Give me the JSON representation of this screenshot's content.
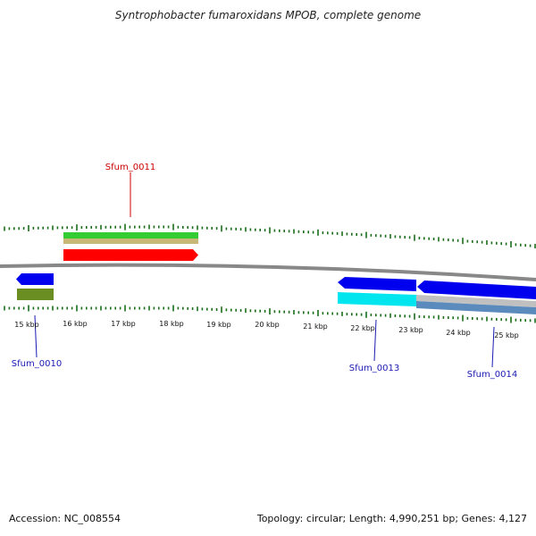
{
  "title": "Syntrophobacter fumaroxidans MPOB, complete genome",
  "footer": {
    "accession": "Accession: NC_008554",
    "summary": "Topology: circular; Length: 4,990,251 bp; Genes: 4,127"
  },
  "scale_labels": [
    "15 kbp",
    "16 kbp",
    "17 kbp",
    "18 kbp",
    "19 kbp",
    "20 kbp",
    "21 kbp",
    "22 kbp",
    "23 kbp",
    "24 kbp",
    "25 kbp"
  ],
  "genes": [
    {
      "name": "Sfum_0010",
      "color": "#1a1ab4",
      "strand": "-",
      "start_kbp": 14.67,
      "end_kbp": 15.23
    },
    {
      "name": "Sfum_0011",
      "color": "#cc0000",
      "strand": "+",
      "start_kbp": 15.75,
      "end_kbp": 18.5
    },
    {
      "name": "Sfum_0013",
      "color": "#1a1ab4",
      "strand": "-",
      "start_kbp": 21.85,
      "end_kbp": 23.45
    },
    {
      "name": "Sfum_0014",
      "color": "#1a1ab4",
      "strand": "-",
      "start_kbp": 23.45,
      "end_kbp": 26.0
    }
  ],
  "colors": {
    "backbone": "#888888",
    "tick_upper": "#1a6e1a",
    "tick_lower": "#1a6e1a",
    "cds_forward": "#ff0000",
    "gene_forward": "#33cc33",
    "gene_forward_alt": "#c8b878",
    "cds_reverse": "#0000ee",
    "gene_reverse": "#6b8e23",
    "cyan_feature": "#00e5ee",
    "steel_feature": "#5b8bbd",
    "gray_feature": "#c0c0c0"
  },
  "icons": [
    "cds-arrow-icon"
  ]
}
